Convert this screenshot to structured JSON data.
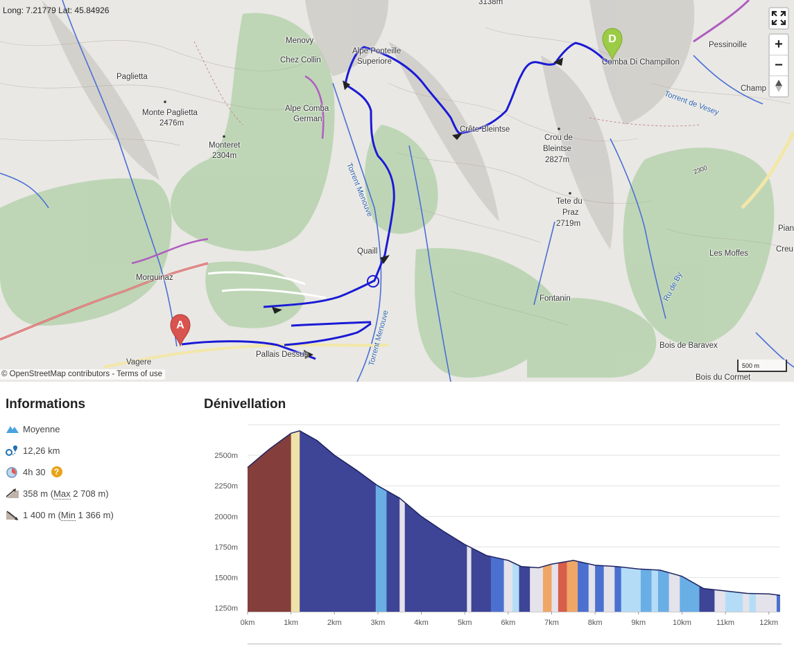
{
  "map": {
    "coords": "Long: 7.21779 Lat: 45.84926",
    "attribution": {
      "prefix": "© ",
      "osm": "OpenStreetMap contributors",
      "sep": " - ",
      "terms": "Terms of use"
    },
    "scale": "500 m",
    "controls": {
      "fullscreen": "fullscreen-icon",
      "zoom_in": "+",
      "zoom_out": "−",
      "north": "compass-icon"
    },
    "markers": {
      "start": "A",
      "end": "D"
    },
    "labels": [
      {
        "key": "l1",
        "text": "Menovy"
      },
      {
        "key": "l2",
        "text": "Chez Collin"
      },
      {
        "key": "l3",
        "text": "Alpe Ponteille"
      },
      {
        "key": "l4",
        "text": "Superiore"
      },
      {
        "key": "l5",
        "text": "Paglietta"
      },
      {
        "key": "l6",
        "text": "Monte Paglietta"
      },
      {
        "key": "l7",
        "text": "2476m"
      },
      {
        "key": "l8",
        "text": "Alpe Comba"
      },
      {
        "key": "l9",
        "text": "German"
      },
      {
        "key": "l10",
        "text": "Monteret"
      },
      {
        "key": "l11",
        "text": "2304m"
      },
      {
        "key": "l12",
        "text": "Crête Bleintse"
      },
      {
        "key": "l13",
        "text": "Crou de"
      },
      {
        "key": "l14",
        "text": "Bleintse"
      },
      {
        "key": "l15",
        "text": "2827m"
      },
      {
        "key": "l16",
        "text": "Tete du"
      },
      {
        "key": "l17",
        "text": "Praz"
      },
      {
        "key": "l18",
        "text": "2719m"
      },
      {
        "key": "l19",
        "text": "3138m"
      },
      {
        "key": "l20",
        "text": "Comba Di Champillon"
      },
      {
        "key": "l21",
        "text": "Pessinoille"
      },
      {
        "key": "l22",
        "text": "Champ"
      },
      {
        "key": "l23",
        "text": "Morguinaz"
      },
      {
        "key": "l24",
        "text": "Quaill"
      },
      {
        "key": "l25",
        "text": "Les Moffes"
      },
      {
        "key": "l26",
        "text": "Fontanin"
      },
      {
        "key": "l27",
        "text": "Bois de Baravex"
      },
      {
        "key": "l28",
        "text": "Bois du Cormet"
      },
      {
        "key": "l29",
        "text": "Vagere"
      },
      {
        "key": "l30",
        "text": "Pallais Dessus"
      },
      {
        "key": "l31",
        "text": "Creu"
      },
      {
        "key": "l32",
        "text": "Pian"
      },
      {
        "key": "l33",
        "text": "2300"
      }
    ],
    "rivers": [
      {
        "key": "r1",
        "text": "Torrent Menouve"
      },
      {
        "key": "r2",
        "text": "Torrent Menouve"
      },
      {
        "key": "r3",
        "text": "Torrent de Vesey"
      },
      {
        "key": "r4",
        "text": "Ru de By"
      }
    ]
  },
  "info": {
    "title": "Informations",
    "difficulty": "Moyenne",
    "distance": "12,26 km",
    "duration": "4h 30",
    "help": "?",
    "ascent": {
      "value": "358 m (",
      "max_label": "Max",
      "max_value": " 2 708 m)"
    },
    "descent": {
      "value": "1 400 m (",
      "min_label": "Min",
      "min_value": " 1 366 m)"
    },
    "colors": {
      "difficulty": "#4aa3df",
      "distance": "#1f6fb2",
      "help": "#e8a317"
    }
  },
  "elevation": {
    "title": "Dénivellation",
    "chart_data": {
      "type": "area",
      "x": [
        0,
        0.5,
        1,
        1.2,
        1.6,
        2,
        2.5,
        3,
        3.5,
        4,
        4.5,
        5,
        5.5,
        6,
        6.3,
        6.7,
        7,
        7.5,
        8,
        8.5,
        9,
        9.5,
        10,
        10.5,
        11,
        11.5,
        12,
        12.26
      ],
      "y": [
        2400,
        2550,
        2680,
        2700,
        2620,
        2500,
        2380,
        2250,
        2150,
        2000,
        1880,
        1770,
        1680,
        1640,
        1590,
        1580,
        1610,
        1640,
        1600,
        1590,
        1570,
        1560,
        1510,
        1410,
        1390,
        1370,
        1366,
        1355
      ],
      "xlabel": "",
      "ylabel": "",
      "xlim": [
        0,
        12.26
      ],
      "ylim": [
        1220,
        2750
      ],
      "y_ticks": [
        1250,
        1500,
        1750,
        2000,
        2250,
        2500
      ],
      "y_tick_labels": [
        "1250m",
        "1500m",
        "1750m",
        "2000m",
        "2250m",
        "2500m"
      ],
      "x_ticks": [
        0,
        1,
        2,
        3,
        4,
        5,
        6,
        7,
        8,
        9,
        10,
        11,
        12
      ],
      "x_tick_labels": [
        "0km",
        "1km",
        "2km",
        "3km",
        "4km",
        "5km",
        "6km",
        "7km",
        "8km",
        "9km",
        "10km",
        "11km",
        "12km"
      ],
      "grid": true,
      "segments": [
        {
          "from": 0,
          "to": 1,
          "color": "#843f3d"
        },
        {
          "from": 1,
          "to": 1.2,
          "color": "#efe2a8"
        },
        {
          "from": 1.2,
          "to": 2.95,
          "color": "#3e4496"
        },
        {
          "from": 2.95,
          "to": 3.2,
          "color": "#6aaee6"
        },
        {
          "from": 3.2,
          "to": 3.5,
          "color": "#3e4496"
        },
        {
          "from": 3.5,
          "to": 3.62,
          "color": "#e4e2ea"
        },
        {
          "from": 3.62,
          "to": 5.05,
          "color": "#3e4496"
        },
        {
          "from": 5.05,
          "to": 5.15,
          "color": "#e4e2ea"
        },
        {
          "from": 5.15,
          "to": 5.6,
          "color": "#3e4496"
        },
        {
          "from": 5.6,
          "to": 5.9,
          "color": "#4b70cf"
        },
        {
          "from": 5.9,
          "to": 6.1,
          "color": "#e4e2ea"
        },
        {
          "from": 6.1,
          "to": 6.25,
          "color": "#b4dcf7"
        },
        {
          "from": 6.25,
          "to": 6.5,
          "color": "#3e4496"
        },
        {
          "from": 6.5,
          "to": 6.8,
          "color": "#e4e2ea"
        },
        {
          "from": 6.8,
          "to": 7.0,
          "color": "#f0a666"
        },
        {
          "from": 7.0,
          "to": 7.15,
          "color": "#e4e2ea"
        },
        {
          "from": 7.15,
          "to": 7.35,
          "color": "#d85d4b"
        },
        {
          "from": 7.35,
          "to": 7.6,
          "color": "#f0a666"
        },
        {
          "from": 7.6,
          "to": 7.85,
          "color": "#4b70cf"
        },
        {
          "from": 7.85,
          "to": 8.0,
          "color": "#e4e2ea"
        },
        {
          "from": 8.0,
          "to": 8.2,
          "color": "#4b70cf"
        },
        {
          "from": 8.2,
          "to": 8.45,
          "color": "#e4e2ea"
        },
        {
          "from": 8.45,
          "to": 8.6,
          "color": "#4b70cf"
        },
        {
          "from": 8.6,
          "to": 9.05,
          "color": "#b4dcf7"
        },
        {
          "from": 9.05,
          "to": 9.3,
          "color": "#6aaee6"
        },
        {
          "from": 9.3,
          "to": 9.45,
          "color": "#b4dcf7"
        },
        {
          "from": 9.45,
          "to": 9.7,
          "color": "#6aaee6"
        },
        {
          "from": 9.7,
          "to": 9.95,
          "color": "#e4e2ea"
        },
        {
          "from": 9.95,
          "to": 10.4,
          "color": "#6aaee6"
        },
        {
          "from": 10.4,
          "to": 10.75,
          "color": "#3e4496"
        },
        {
          "from": 10.75,
          "to": 11.0,
          "color": "#e4e2ea"
        },
        {
          "from": 11.0,
          "to": 11.4,
          "color": "#b4dcf7"
        },
        {
          "from": 11.4,
          "to": 11.55,
          "color": "#e4e2ea"
        },
        {
          "from": 11.55,
          "to": 11.7,
          "color": "#b4dcf7"
        },
        {
          "from": 11.7,
          "to": 12.18,
          "color": "#e4e2ea"
        },
        {
          "from": 12.18,
          "to": 12.26,
          "color": "#4b70cf"
        }
      ]
    }
  }
}
